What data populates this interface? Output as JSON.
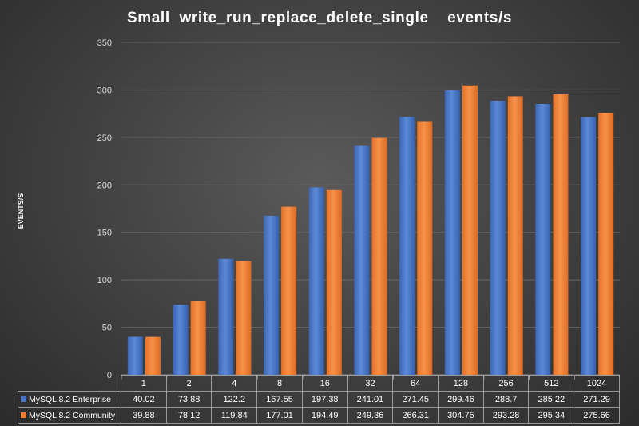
{
  "chart_data": {
    "type": "bar",
    "title": "Small  write_run_replace_delete_single    events/s",
    "ylabel": "EVENTS/S",
    "xlabel": "",
    "ylim": [
      0,
      350
    ],
    "yticks": [
      0,
      50,
      100,
      150,
      200,
      250,
      300,
      350
    ],
    "grid": true,
    "legend": "data-table",
    "categories": [
      "1",
      "2",
      "4",
      "8",
      "16",
      "32",
      "64",
      "128",
      "256",
      "512",
      "1024"
    ],
    "series": [
      {
        "name": "MySQL 8.2 Enterprise",
        "color": "#4472c4",
        "values": [
          40.02,
          73.88,
          122.2,
          167.55,
          197.38,
          241.01,
          271.45,
          299.46,
          288.7,
          285.22,
          271.29
        ]
      },
      {
        "name": "MySQL 8.2 Community",
        "color": "#ed7d31",
        "values": [
          39.88,
          78.12,
          119.84,
          177.01,
          194.49,
          249.36,
          266.31,
          304.75,
          293.28,
          295.34,
          275.66
        ]
      }
    ]
  }
}
